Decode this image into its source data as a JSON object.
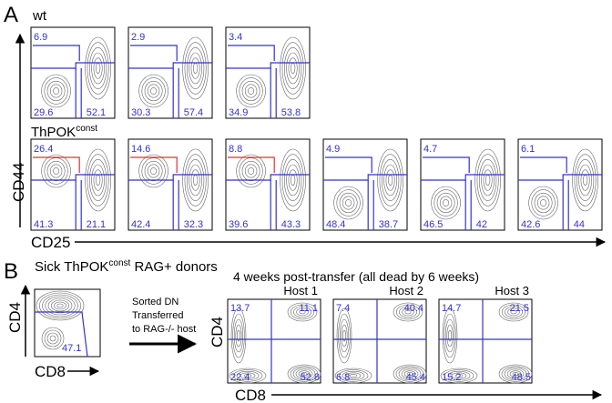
{
  "panel_a": {
    "label": "A",
    "wt_label": "wt",
    "wt_plots": [
      {
        "tl": "6.9",
        "bl": "29.6",
        "br": "52.1"
      },
      {
        "tl": "2.9",
        "bl": "30.3",
        "br": "57.4"
      },
      {
        "tl": "3.4",
        "bl": "34.9",
        "br": "53.8"
      }
    ],
    "thpok_label": {
      "text": "ThPOK",
      "sup": "const"
    },
    "thpok_plots": [
      {
        "tl": "26.4",
        "bl": "41.3",
        "br": "21.1"
      },
      {
        "tl": "14.6",
        "bl": "42.4",
        "br": "32.3"
      },
      {
        "tl": "8.8",
        "bl": "39.6",
        "br": "43.3"
      },
      {
        "tl": "4.9",
        "bl": "48.4",
        "br": "38.7"
      },
      {
        "tl": "4.7",
        "bl": "46.5",
        "br": "42"
      },
      {
        "tl": "6.1",
        "bl": "42.6",
        "br": "44"
      }
    ],
    "y_axis": "CD44",
    "x_axis": "CD25"
  },
  "panel_b": {
    "label": "B",
    "title": {
      "pre": "Sick ThPOK",
      "sup": "const",
      "post": " RAG+ donors"
    },
    "donor_plot": {
      "value": "47.1",
      "y_axis": "CD4",
      "x_axis": "CD8"
    },
    "transfer_text": [
      "Sorted DN",
      "Transferred",
      "to RAG-/- host"
    ],
    "subtitle": "4 weeks post-transfer (all dead by 6 weeks)",
    "hosts": [
      {
        "name": "Host 1",
        "tl": "13.7",
        "tr": "11.1",
        "bl": "22.4",
        "br": "52.8"
      },
      {
        "name": "Host 2",
        "tl": "7.4",
        "tr": "40.4",
        "bl": "6.8",
        "br": "45.4"
      },
      {
        "name": "Host 3",
        "tl": "14.7",
        "tr": "21.5",
        "bl": "15.2",
        "br": "48.5"
      }
    ],
    "y_axis": "CD4",
    "x_axis": "CD8"
  }
}
